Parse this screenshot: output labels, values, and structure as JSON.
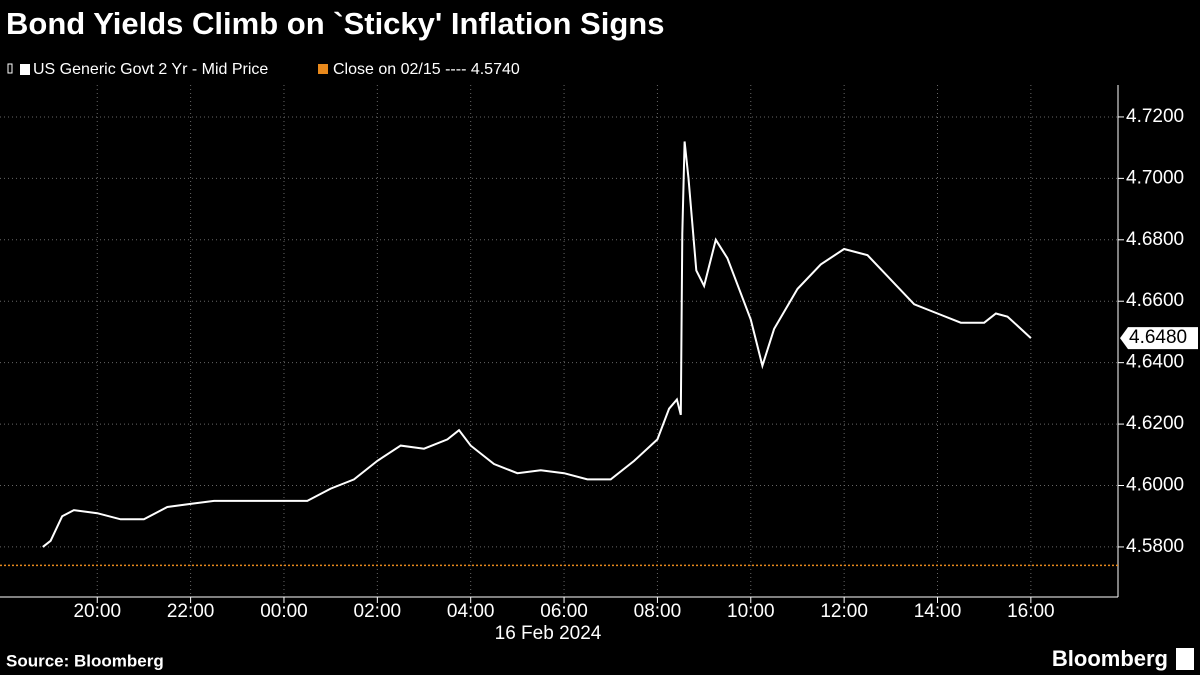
{
  "chart_data": {
    "type": "line",
    "title": "Bond Yields Climb on `Sticky' Inflation Signs",
    "series": [
      {
        "name": "US Generic Govt 2 Yr - Mid Price",
        "color": "#ffffff",
        "x": [
          "18:50",
          "19:00",
          "19:15",
          "19:30",
          "20:00",
          "20:30",
          "21:00",
          "21:30",
          "22:00",
          "22:30",
          "23:00",
          "23:30",
          "00:00",
          "00:30",
          "01:00",
          "01:30",
          "02:00",
          "02:30",
          "03:00",
          "03:30",
          "03:45",
          "04:00",
          "04:30",
          "05:00",
          "05:30",
          "06:00",
          "06:30",
          "07:00",
          "07:30",
          "08:00",
          "08:15",
          "08:25",
          "08:30",
          "08:32",
          "08:35",
          "08:40",
          "08:50",
          "09:00",
          "09:15",
          "09:30",
          "10:00",
          "10:15",
          "10:30",
          "11:00",
          "11:30",
          "12:00",
          "12:30",
          "13:00",
          "13:30",
          "14:00",
          "14:30",
          "15:00",
          "15:15",
          "15:30",
          "16:00"
        ],
        "values": [
          4.58,
          4.582,
          4.59,
          4.592,
          4.591,
          4.589,
          4.589,
          4.593,
          4.594,
          4.595,
          4.595,
          4.595,
          4.595,
          4.595,
          4.599,
          4.602,
          4.608,
          4.613,
          4.612,
          4.615,
          4.618,
          4.613,
          4.607,
          4.604,
          4.605,
          4.604,
          4.602,
          4.602,
          4.608,
          4.615,
          4.625,
          4.628,
          4.623,
          4.682,
          4.712,
          4.7,
          4.67,
          4.665,
          4.68,
          4.674,
          4.654,
          4.639,
          4.651,
          4.664,
          4.672,
          4.677,
          4.675,
          4.667,
          4.659,
          4.656,
          4.653,
          4.653,
          4.656,
          4.655,
          4.648
        ]
      }
    ],
    "reference_line": {
      "name": "Close on 02/15 ---- 4.5740",
      "value": 4.574,
      "color": "#e8891c"
    },
    "last_label": {
      "value": 4.648,
      "label": "4.6480"
    },
    "xlim": [
      "17:55",
      "17:52"
    ],
    "xticks": [
      "20:00",
      "22:00",
      "00:00",
      "02:00",
      "04:00",
      "06:00",
      "08:00",
      "10:00",
      "12:00",
      "14:00",
      "16:00"
    ],
    "x_date_label": "16 Feb 2024",
    "ylim": [
      4.5637,
      4.7304
    ],
    "yticks": [
      {
        "value": 4.58,
        "label": "4.5800"
      },
      {
        "value": 4.6,
        "label": "4.6000"
      },
      {
        "value": 4.62,
        "label": "4.6200"
      },
      {
        "value": 4.64,
        "label": "4.6400"
      },
      {
        "value": 4.66,
        "label": "4.6600"
      },
      {
        "value": 4.68,
        "label": "4.6800"
      },
      {
        "value": 4.7,
        "label": "4.7000"
      },
      {
        "value": 4.72,
        "label": "4.7200"
      }
    ],
    "grid": true,
    "source": "Source: Bloomberg",
    "brand": "Bloomberg"
  }
}
